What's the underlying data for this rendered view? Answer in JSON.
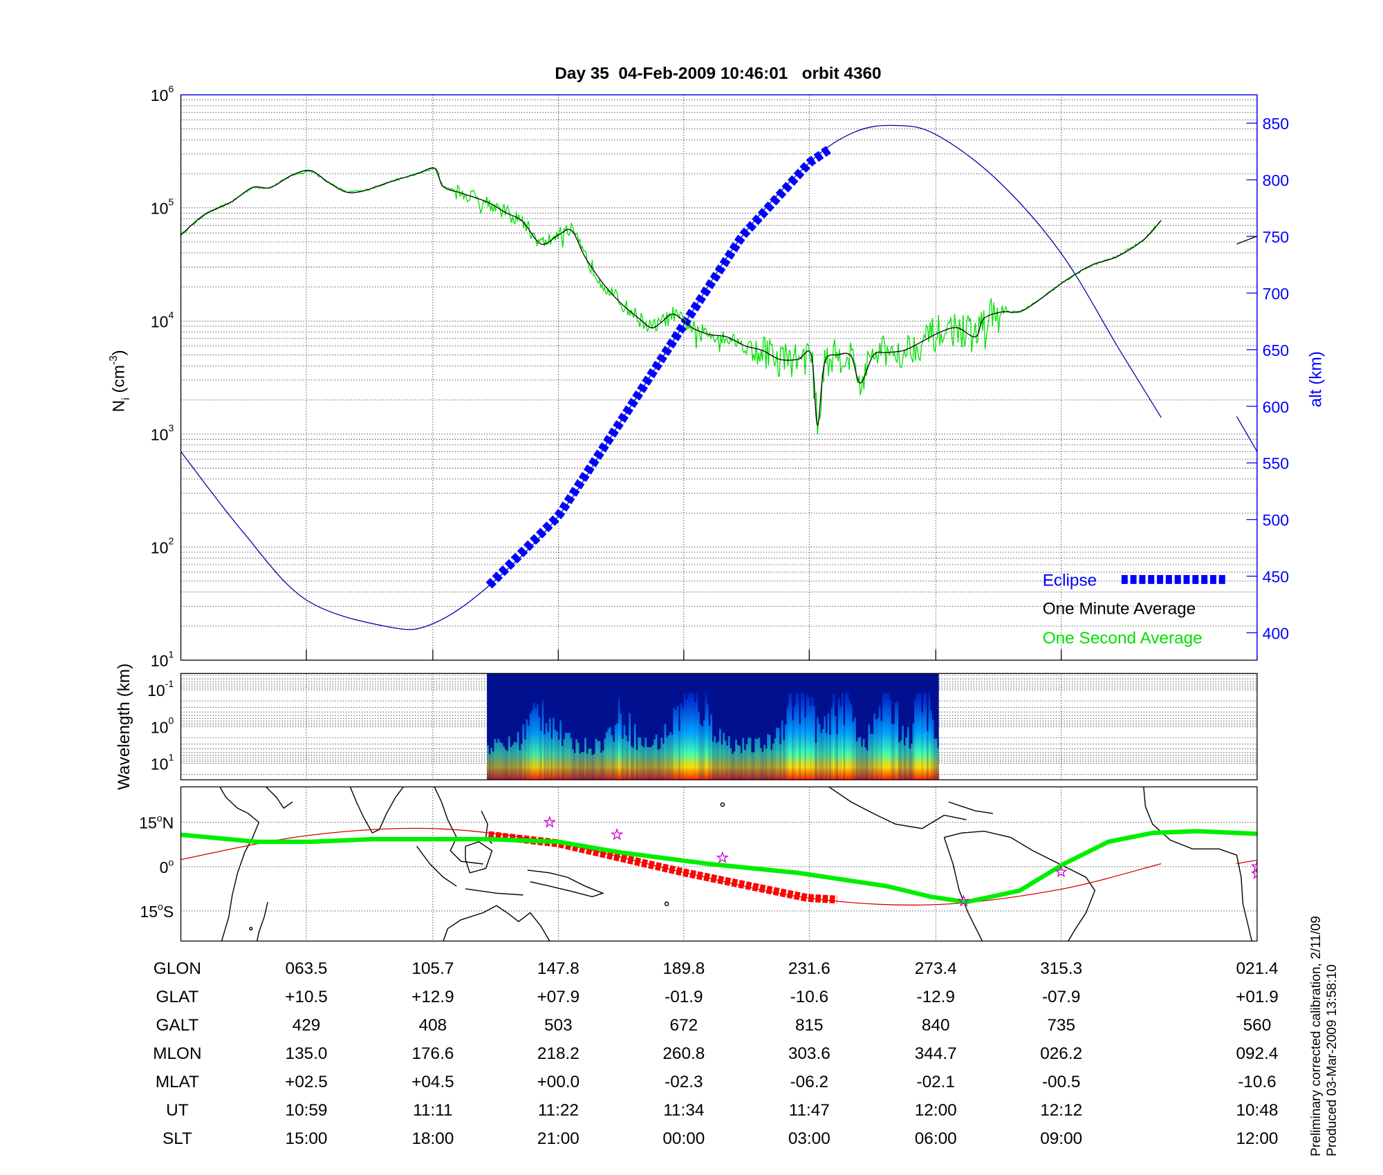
{
  "title": "Day 35  04-Feb-2009 10:46:01   orbit 4360",
  "footer": {
    "line1": "Preliminary corrected calibration, 2/11/09",
    "line2": "Produced 03-Mar-2009 13:58:10"
  },
  "colors": {
    "eclipse": "#0000ff",
    "minute_avg": "#000000",
    "second_avg": "#00e000",
    "altitude": "#0000aa",
    "track": "#d40000",
    "dip_equator": "#00ee00",
    "stars": "#cc00cc"
  },
  "chart_data": {
    "type": "line",
    "title": "Day 35  04-Feb-2009 10:46:01   orbit 4360",
    "x_units": "minutes after 10:47 UT",
    "xlim": [
      0,
      105.5
    ],
    "density_panel": {
      "ylabel": "N",
      "ylabel_sub": "i",
      "ylabel_units_pre": " (cm",
      "ylabel_units_sup": "-3",
      "ylabel_units_post": ")",
      "yscale": "log",
      "ylim_log10": [
        1,
        6
      ],
      "yticks": [
        {
          "base": "10",
          "exp": "6"
        },
        {
          "base": "10",
          "exp": "5"
        },
        {
          "base": "10",
          "exp": "4"
        },
        {
          "base": "10",
          "exp": "3"
        },
        {
          "base": "10",
          "exp": "2"
        },
        {
          "base": "10",
          "exp": "1"
        }
      ],
      "right_ylabel": "alt (km)",
      "right_ylim": [
        376,
        875
      ],
      "right_yticks": [
        "850",
        "800",
        "750",
        "700",
        "650",
        "600",
        "550",
        "500",
        "450",
        "400"
      ],
      "legend": {
        "placement": "bottom-right",
        "eclipse": "Eclipse",
        "minute": "One Minute Average",
        "second": "One Second Average"
      },
      "one_minute_average_log10": [
        [
          0,
          4.76
        ],
        [
          2.3,
          4.94
        ],
        [
          4.9,
          5.05
        ],
        [
          7.0,
          5.18
        ],
        [
          8.8,
          5.18
        ],
        [
          10.9,
          5.29
        ],
        [
          12.7,
          5.33
        ],
        [
          14.4,
          5.23
        ],
        [
          16.2,
          5.14
        ],
        [
          17.9,
          5.15
        ],
        [
          20.5,
          5.23
        ],
        [
          23.1,
          5.3
        ],
        [
          24.9,
          5.35
        ],
        [
          25.7,
          5.19
        ],
        [
          27.5,
          5.13
        ],
        [
          30.1,
          5.05
        ],
        [
          31.8,
          4.96
        ],
        [
          33.5,
          4.88
        ],
        [
          35.3,
          4.68
        ],
        [
          37.0,
          4.76
        ],
        [
          38.3,
          4.8
        ],
        [
          39.6,
          4.57
        ],
        [
          41.4,
          4.33
        ],
        [
          43.1,
          4.16
        ],
        [
          44.8,
          4.03
        ],
        [
          46.1,
          3.94
        ],
        [
          47.0,
          3.98
        ],
        [
          48.3,
          4.06
        ],
        [
          50.1,
          3.94
        ],
        [
          51.8,
          3.88
        ],
        [
          53.5,
          3.86
        ],
        [
          55.3,
          3.78
        ],
        [
          57.0,
          3.74
        ],
        [
          58.7,
          3.66
        ],
        [
          60.5,
          3.66
        ],
        [
          61.8,
          3.7
        ],
        [
          62.4,
          3.08
        ],
        [
          63.1,
          3.63
        ],
        [
          64.4,
          3.7
        ],
        [
          65.7,
          3.69
        ],
        [
          66.6,
          3.45
        ],
        [
          67.9,
          3.7
        ],
        [
          69.2,
          3.72
        ],
        [
          70.9,
          3.74
        ],
        [
          72.7,
          3.82
        ],
        [
          74.4,
          3.9
        ],
        [
          76.1,
          3.94
        ],
        [
          77.9,
          3.86
        ],
        [
          78.7,
          4.02
        ],
        [
          80.5,
          4.08
        ],
        [
          82.2,
          4.08
        ],
        [
          83.9,
          4.17
        ],
        [
          86.6,
          4.35
        ],
        [
          89.2,
          4.49
        ],
        [
          91.8,
          4.57
        ],
        [
          94.4,
          4.72
        ],
        [
          96.1,
          4.89
        ]
      ],
      "one_minute_average_tail_log10": [
        [
          103.5,
          4.68
        ],
        [
          105.5,
          4.75
        ]
      ],
      "one_second_noisy_range": [
        27,
        81
      ],
      "altitude_km": [
        [
          0,
          560
        ],
        [
          6,
          490
        ],
        [
          12.3,
          429
        ],
        [
          20.5,
          405
        ],
        [
          24.7,
          408
        ],
        [
          30,
          440
        ],
        [
          37,
          503
        ],
        [
          43,
          585
        ],
        [
          49.3,
          672
        ],
        [
          55,
          750
        ],
        [
          61.6,
          815
        ],
        [
          66,
          842
        ],
        [
          70,
          848
        ],
        [
          74,
          840
        ],
        [
          80,
          800
        ],
        [
          86.3,
          735
        ],
        [
          92,
          650
        ],
        [
          96.1,
          590
        ]
      ],
      "altitude_tail_km": [
        [
          103.5,
          591
        ],
        [
          105.5,
          560
        ]
      ],
      "eclipse_range": [
        30.2,
        64.0
      ]
    },
    "spectrogram_panel": {
      "type": "heatmap",
      "ylabel": "Wavelength (km)",
      "yscale": "log",
      "yticks": [
        {
          "base": "10",
          "exp": "-1"
        },
        {
          "base": "10",
          "exp": "0"
        },
        {
          "base": "10",
          "exp": "1"
        }
      ],
      "data_range": [
        30.0,
        74.3
      ]
    },
    "map_panel": {
      "yticks": [
        {
          "deg": "15",
          "unit": "o",
          "hem": "N",
          "lat": 15
        },
        {
          "deg": "0",
          "unit": "o",
          "hem": "",
          "lat": 0
        },
        {
          "deg": "15",
          "unit": "o",
          "hem": "S",
          "lat": -15
        }
      ],
      "lon_range": [
        21.2,
        382.5
      ],
      "satellite_track": [
        [
          21.2,
          2.4
        ],
        [
          63.5,
          10.5
        ],
        [
          105.7,
          12.9
        ],
        [
          147.8,
          7.9
        ],
        [
          189.8,
          -1.9
        ],
        [
          231.6,
          -10.6
        ],
        [
          273.4,
          -12.9
        ],
        [
          315.3,
          -7.9
        ],
        [
          350.3,
          1.0
        ]
      ],
      "satellite_track_tail": [
        [
          375.5,
          1.0
        ],
        [
          382.5,
          2.2
        ]
      ],
      "eclipse_track_lon": [
        124.5,
        241.5
      ],
      "dip_equator": [
        [
          21.2,
          10.8
        ],
        [
          46.8,
          8.4
        ],
        [
          64.7,
          8.4
        ],
        [
          85.5,
          9.3
        ],
        [
          124.2,
          9.3
        ],
        [
          148.0,
          8.4
        ],
        [
          168.8,
          4.8
        ],
        [
          198.6,
          0.9
        ],
        [
          228.3,
          -2.1
        ],
        [
          258.1,
          -6.6
        ],
        [
          273.0,
          -10.2
        ],
        [
          284.9,
          -12.0
        ],
        [
          302.8,
          -8.1
        ],
        [
          317.6,
          0.9
        ],
        [
          332.5,
          8.4
        ],
        [
          347.4,
          11.4
        ],
        [
          362.3,
          12.0
        ],
        [
          382.5,
          11.1
        ]
      ],
      "stars": [
        [
          145.0,
          15.0
        ],
        [
          167.6,
          10.8
        ],
        [
          203.0,
          3.0
        ],
        [
          284.0,
          -11.7
        ],
        [
          316.7,
          -1.8
        ],
        [
          382.5,
          0.0
        ],
        [
          382.5,
          -2.4
        ]
      ]
    }
  },
  "table": {
    "tick_minutes": [
      12.3,
      24.7,
      37.0,
      49.3,
      61.6,
      74.0,
      86.3,
      105.5
    ],
    "rows": [
      {
        "label": "GLON",
        "values": [
          "063.5",
          "105.7",
          "147.8",
          "189.8",
          "231.6",
          "273.4",
          "315.3",
          "021.4"
        ]
      },
      {
        "label": "GLAT",
        "values": [
          "+10.5",
          "+12.9",
          "+07.9",
          "-01.9",
          "-10.6",
          "-12.9",
          "-07.9",
          "+01.9"
        ]
      },
      {
        "label": "GALT",
        "values": [
          "429",
          "408",
          "503",
          "672",
          "815",
          "840",
          "735",
          "560"
        ]
      },
      {
        "label": "MLON",
        "values": [
          "135.0",
          "176.6",
          "218.2",
          "260.8",
          "303.6",
          "344.7",
          "026.2",
          "092.4"
        ]
      },
      {
        "label": "MLAT",
        "values": [
          "+02.5",
          "+04.5",
          "+00.0",
          "-02.3",
          "-06.2",
          "-02.1",
          "-00.5",
          "-10.6"
        ]
      },
      {
        "label": "UT",
        "values": [
          "10:59",
          "11:11",
          "11:22",
          "11:34",
          "11:47",
          "12:00",
          "12:12",
          "10:48"
        ]
      },
      {
        "label": "SLT",
        "values": [
          "15:00",
          "18:00",
          "21:00",
          "00:00",
          "03:00",
          "06:00",
          "09:00",
          "12:00"
        ]
      }
    ]
  }
}
